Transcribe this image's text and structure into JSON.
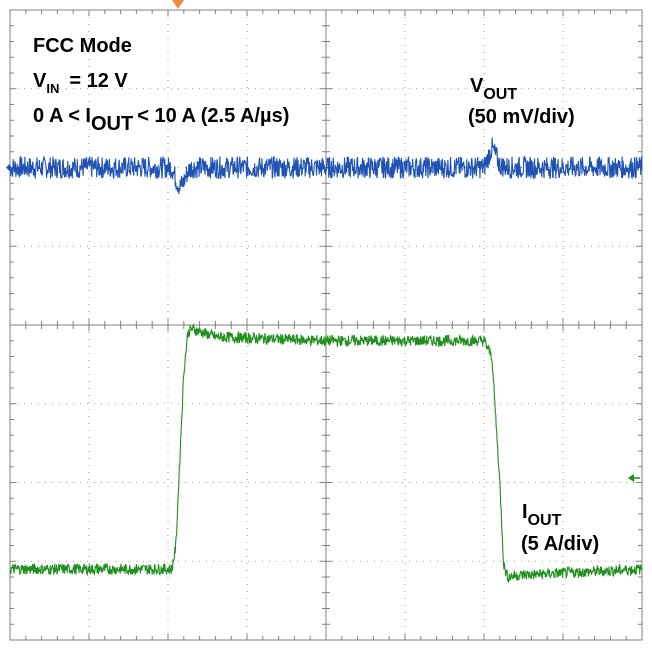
{
  "annotations": {
    "mode": "FCC Mode",
    "vin_main": "V",
    "vin_sub": "IN",
    "vin_value": "= 12 V",
    "step_pre": "0 A < I",
    "step_sub": "OUT",
    "step_post": "< 10 A (2.5 A/µs)",
    "vout_main": "V",
    "vout_sub": "OUT",
    "vout_scale": "(50 mV/div)",
    "iout_main": "I",
    "iout_sub": "OUT",
    "iout_scale": "(5 A/div)"
  },
  "colors": {
    "vout_trace": "#1f52b3",
    "iout_trace": "#1f8f1f",
    "grid": "#808080",
    "trigger_marker": "#f08a3c"
  },
  "chart_data": {
    "type": "line",
    "grid": true,
    "divisions": {
      "x": 8,
      "y": 8
    },
    "xlim": [
      0,
      8
    ],
    "ylim": [
      0,
      8
    ],
    "series": [
      {
        "name": "VOUT",
        "scale": "50 mV/div",
        "x": [
          0,
          2.05,
          2.1,
          2.15,
          2.2,
          2.25,
          2.3,
          2.4,
          2.5,
          6.0,
          6.05,
          6.1,
          6.15,
          6.2,
          6.3,
          6.4,
          8.0
        ],
        "y": [
          6.0,
          6.0,
          5.85,
          5.75,
          5.82,
          5.95,
          6.0,
          6.0,
          6.0,
          6.0,
          6.12,
          6.25,
          6.15,
          6.03,
          6.0,
          6.0,
          6.0
        ],
        "noise_divs": 0.14
      },
      {
        "name": "IOUT",
        "scale": "5 A/div",
        "x": [
          0,
          2.05,
          2.1,
          2.15,
          2.2,
          2.25,
          2.3,
          2.6,
          4.0,
          6.0,
          6.1,
          6.2,
          6.25,
          6.3,
          6.4,
          8.0
        ],
        "y": [
          0.9,
          0.9,
          1.2,
          2.3,
          3.4,
          3.9,
          3.95,
          3.85,
          3.8,
          3.8,
          3.6,
          2.0,
          0.95,
          0.8,
          0.82,
          0.9
        ],
        "noise_divs": 0.07
      }
    ]
  }
}
